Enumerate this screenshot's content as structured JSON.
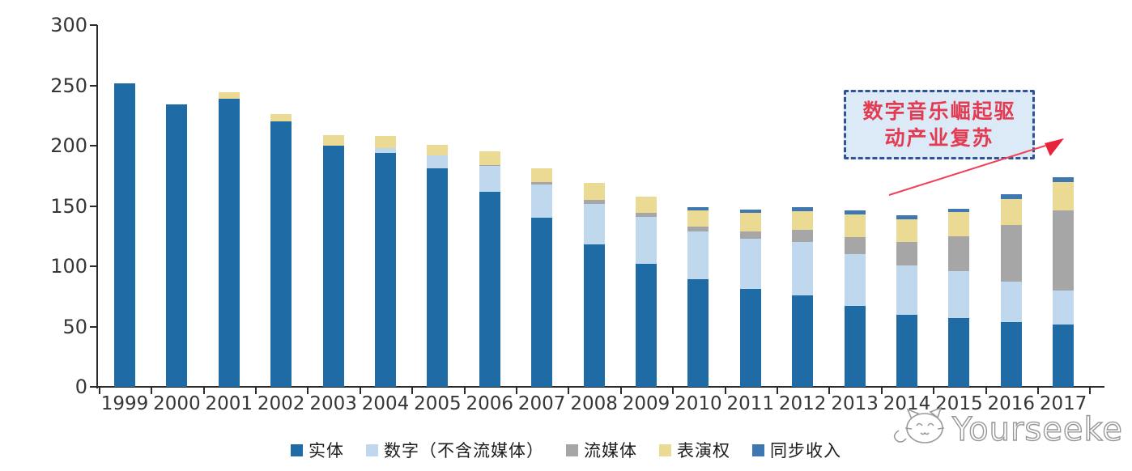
{
  "chart_data": {
    "type": "bar",
    "stacked": true,
    "title": "",
    "xlabel": "",
    "ylabel": "",
    "ylim": [
      0,
      300
    ],
    "yticks": [
      0,
      50,
      100,
      150,
      200,
      250,
      300
    ],
    "grid": false,
    "legend_position": "bottom",
    "categories": [
      "1999",
      "2000",
      "2001",
      "2002",
      "2003",
      "2004",
      "2005",
      "2006",
      "2007",
      "2008",
      "2009",
      "2010",
      "2011",
      "2012",
      "2013",
      "2014",
      "2015",
      "2016",
      "2017"
    ],
    "series": [
      {
        "key": "physical",
        "name": "实体",
        "color": "#1f6ba6",
        "values": [
          252,
          234,
          239,
          220,
          200,
          194,
          181,
          162,
          140,
          118,
          102,
          89,
          81,
          76,
          67,
          60,
          57,
          54,
          52
        ]
      },
      {
        "key": "digital-excl-streaming",
        "name": "数字（不含流媒体）",
        "color": "#bfd8ee",
        "values": [
          0,
          0,
          0,
          0,
          0,
          4,
          11,
          21,
          28,
          34,
          39,
          40,
          42,
          44,
          43,
          41,
          39,
          33,
          28
        ]
      },
      {
        "key": "streaming",
        "name": "流媒体",
        "color": "#a6a6a6",
        "values": [
          0,
          0,
          0,
          0,
          0,
          0,
          0,
          1,
          2,
          3,
          3,
          4,
          6,
          10,
          14,
          19,
          29,
          47,
          66
        ]
      },
      {
        "key": "performance-rights",
        "name": "表演权",
        "color": "#ebda93",
        "values": [
          0,
          0,
          5,
          6,
          9,
          10,
          9,
          11,
          11,
          14,
          14,
          13,
          15,
          16,
          19,
          19,
          20,
          22,
          24
        ]
      },
      {
        "key": "sync-revenue",
        "name": "同步收入",
        "color": "#3f78b0",
        "values": [
          0,
          0,
          0,
          0,
          0,
          0,
          0,
          0,
          0,
          0,
          0,
          3,
          3,
          3,
          3,
          3,
          3,
          4,
          4
        ]
      }
    ]
  },
  "annotation": {
    "line1": "数字音乐崛起驱",
    "line2": "动产业复苏",
    "text_color": "#e23b52",
    "box_fill": "#dce9f6",
    "box_border": "#2f5496",
    "arrow_color": "#ef4156"
  },
  "watermark": {
    "text": "Yourseeker",
    "logo": "cat-logo",
    "color": "#999999"
  }
}
